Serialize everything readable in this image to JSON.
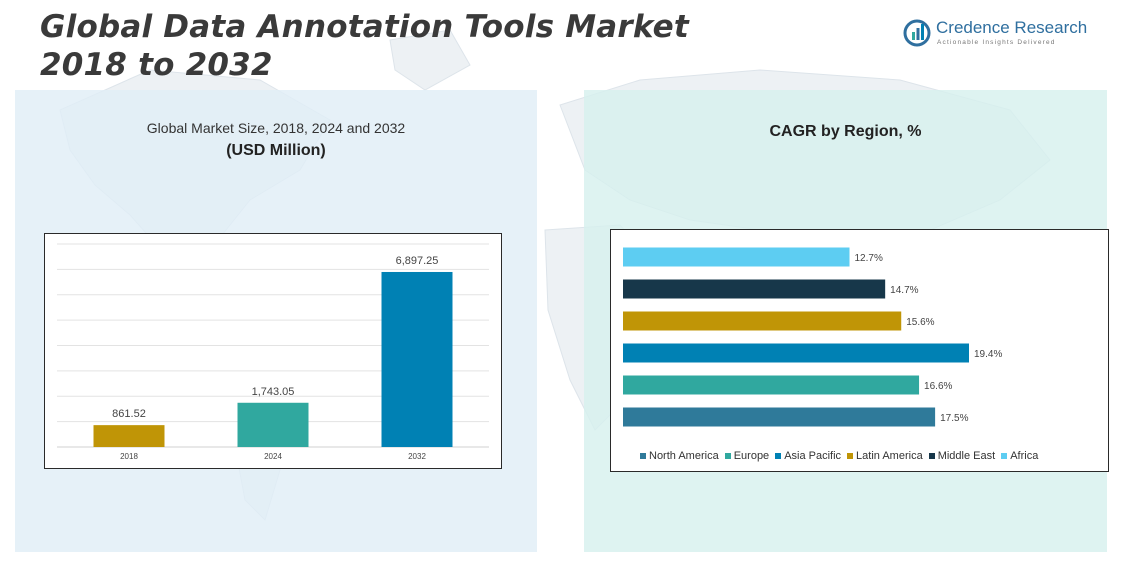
{
  "title_line1": "Global Data Annotation Tools Market",
  "title_line2": "2018 to 2032",
  "logo": {
    "name": "Credence Research",
    "tagline": "Actionable Insights Delivered"
  },
  "left_panel": {
    "subtitle": "Global Market Size, 2018, 2024 and 2032",
    "unit": "(USD Million)"
  },
  "right_panel": {
    "title": "CAGR by Region, %"
  },
  "chart_data": [
    {
      "type": "bar",
      "title": "Global Market Size, 2018, 2024 and 2032",
      "ylabel": "(USD Million)",
      "categories": [
        "2018",
        "2024",
        "2032"
      ],
      "values": [
        861.52,
        1743.05,
        6897.25
      ],
      "value_labels": [
        "861.52",
        "1,743.05",
        "6,897.25"
      ],
      "colors": [
        "#c09506",
        "#30a89f",
        "#0081b4"
      ],
      "ylim": [
        0,
        8000
      ],
      "grid": true
    },
    {
      "type": "bar",
      "orientation": "horizontal",
      "title": "CAGR by Region, %",
      "categories": [
        "Africa",
        "Middle East",
        "Latin America",
        "Asia Pacific",
        "Europe",
        "North America"
      ],
      "values": [
        12.7,
        14.7,
        15.6,
        19.4,
        16.6,
        17.5
      ],
      "value_labels": [
        "12.7%",
        "14.7%",
        "15.6%",
        "19.4%",
        "16.6%",
        "17.5%"
      ],
      "colors": [
        "#5dcdf2",
        "#17374a",
        "#c09506",
        "#0081b4",
        "#30a89f",
        "#2f7a9a"
      ],
      "legend": [
        {
          "name": "North America",
          "color": "#2f7a9a"
        },
        {
          "name": "Europe",
          "color": "#30a89f"
        },
        {
          "name": "Asia Pacific",
          "color": "#0081b4"
        },
        {
          "name": "Latin America",
          "color": "#c09506"
        },
        {
          "name": "Middle East",
          "color": "#17374a"
        },
        {
          "name": "Africa",
          "color": "#5dcdf2"
        }
      ],
      "legend_position": "bottom",
      "grid": false
    }
  ]
}
